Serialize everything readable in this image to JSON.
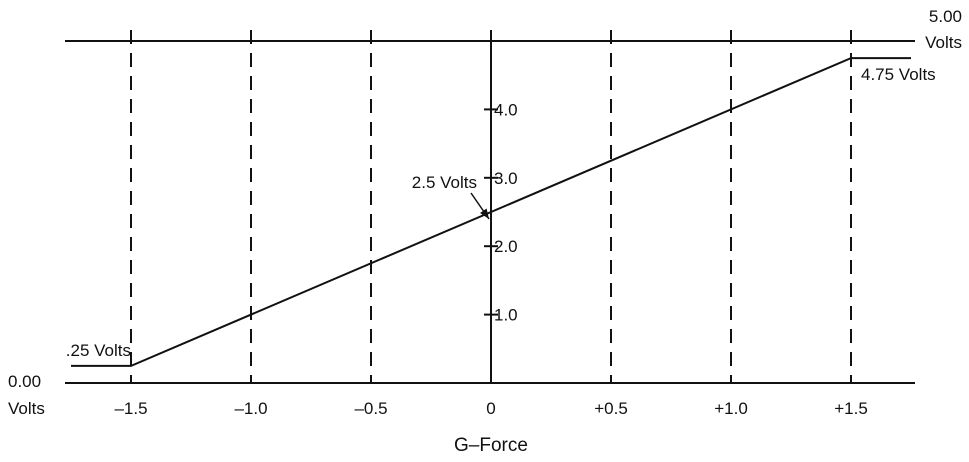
{
  "chart_data": {
    "type": "line",
    "title": "",
    "xlabel": "G–Force",
    "ylabel": "",
    "xlim": [
      -1.75,
      1.75
    ],
    "ylim": [
      0,
      5
    ],
    "x_ticks": [
      {
        "value": -1.5,
        "label": "–1.5"
      },
      {
        "value": -1.0,
        "label": "–1.0"
      },
      {
        "value": -0.5,
        "label": "–0.5"
      },
      {
        "value": 0,
        "label": "0"
      },
      {
        "value": 0.5,
        "label": "+0.5"
      },
      {
        "value": 1.0,
        "label": "+1.0"
      },
      {
        "value": 1.5,
        "label": "+1.5"
      }
    ],
    "y_ticks": [
      {
        "value": 1.0,
        "label": "1.0"
      },
      {
        "value": 2.0,
        "label": "2.0"
      },
      {
        "value": 3.0,
        "label": "3.0"
      },
      {
        "value": 4.0,
        "label": "4.0"
      }
    ],
    "grid": "vertical dashed lines at x ticks",
    "series": [
      {
        "x": [
          -1.75,
          -1.5,
          1.5,
          1.75
        ],
        "y": [
          0.25,
          0.25,
          4.75,
          4.75
        ]
      }
    ],
    "reference_lines": [
      {
        "y": 0.0,
        "label_line1": "0.00",
        "label_line2": "Volts"
      },
      {
        "y": 5.0,
        "label_line1": "5.00",
        "label_line2": "Volts"
      }
    ],
    "annotations": [
      {
        "text": ".25 Volts",
        "x": -1.5,
        "y": 0.25
      },
      {
        "text": "4.75 Volts",
        "x": 1.5,
        "y": 4.75
      },
      {
        "text": "2.5 Volts",
        "x": 0,
        "y": 2.5
      }
    ],
    "colors": {
      "line": "#111111",
      "background": "#ffffff"
    }
  }
}
